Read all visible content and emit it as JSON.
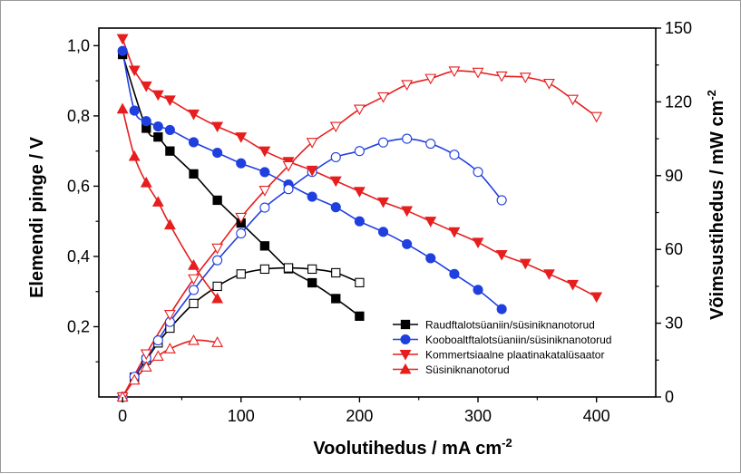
{
  "chart_data": {
    "type": "line",
    "xlabel": "Voolutihedus / mA cm",
    "xlabel_sup": "-2",
    "ylabel_left": "Elemendi pinge / V",
    "ylabel_right": "Võimsustihedus / mW cm",
    "ylabel_right_sup": "-2",
    "xlim": [
      -20,
      450
    ],
    "ylim_left": [
      0,
      1.05
    ],
    "ylim_right": [
      0,
      150
    ],
    "x_ticks": [
      0,
      100,
      200,
      300,
      400
    ],
    "y_left_ticks": [
      0.2,
      0.4,
      0.6,
      0.8,
      1.0
    ],
    "y_left_tick_labels": [
      "0,2",
      "0,4",
      "0,6",
      "0,8",
      "1,0"
    ],
    "y_right_ticks": [
      0,
      30,
      60,
      90,
      120,
      150
    ],
    "legend_position": "lower-right",
    "series": [
      {
        "name": "Raudftalotsüaniin/süsiniknanotorud",
        "color": "#000000",
        "marker": "square",
        "voltage": {
          "x": [
            0,
            20,
            30,
            40,
            60,
            80,
            100,
            120,
            140,
            160,
            180,
            200
          ],
          "y": [
            0.975,
            0.765,
            0.74,
            0.7,
            0.635,
            0.56,
            0.495,
            0.43,
            0.365,
            0.325,
            0.28,
            0.23
          ]
        },
        "power": {
          "x": [
            0,
            10,
            20,
            30,
            40,
            60,
            80,
            100,
            120,
            140,
            160,
            180,
            200
          ],
          "y": [
            0,
            8,
            15,
            22,
            28,
            38,
            45,
            50,
            52,
            52.5,
            52,
            50.5,
            46.5
          ]
        }
      },
      {
        "name": "Kooboaltftalotsüaniin/süsiniknanotorud",
        "color": "#1f3fdf",
        "marker": "circle",
        "voltage": {
          "x": [
            0,
            10,
            20,
            30,
            40,
            60,
            80,
            100,
            120,
            140,
            160,
            180,
            200,
            220,
            240,
            260,
            280,
            300,
            320
          ],
          "y": [
            0.985,
            0.815,
            0.785,
            0.77,
            0.76,
            0.725,
            0.695,
            0.665,
            0.64,
            0.605,
            0.57,
            0.54,
            0.5,
            0.47,
            0.435,
            0.395,
            0.35,
            0.305,
            0.25
          ]
        },
        "power": {
          "x": [
            0,
            10,
            20,
            30,
            40,
            60,
            80,
            100,
            120,
            140,
            160,
            180,
            200,
            220,
            240,
            260,
            280,
            300,
            320
          ],
          "y": [
            0,
            8.2,
            15.7,
            23,
            30.5,
            43.5,
            55.6,
            66.5,
            77,
            84.5,
            91.5,
            97.5,
            100,
            103.5,
            105,
            103,
            98.5,
            91.5,
            80
          ]
        }
      },
      {
        "name": "Kommertsiaalne plaatinakatalüsaator",
        "color": "#e61e1e",
        "marker": "triangle-down",
        "voltage": {
          "x": [
            0,
            10,
            20,
            30,
            40,
            60,
            80,
            100,
            120,
            140,
            160,
            180,
            200,
            220,
            240,
            260,
            280,
            300,
            320,
            340,
            360,
            380,
            400
          ],
          "y": [
            1.02,
            0.93,
            0.885,
            0.86,
            0.845,
            0.805,
            0.77,
            0.74,
            0.7,
            0.67,
            0.645,
            0.615,
            0.585,
            0.555,
            0.53,
            0.5,
            0.47,
            0.44,
            0.405,
            0.38,
            0.35,
            0.32,
            0.285
          ]
        },
        "power": {
          "x": [
            0,
            20,
            40,
            60,
            80,
            100,
            120,
            140,
            160,
            180,
            200,
            220,
            240,
            260,
            280,
            300,
            320,
            340,
            360,
            380,
            400
          ],
          "y": [
            0,
            17.5,
            33.5,
            48,
            60.5,
            73,
            84,
            94,
            103.5,
            110,
            117,
            122,
            127,
            129.5,
            132.5,
            132,
            130.5,
            130,
            127.5,
            121,
            114
          ]
        }
      },
      {
        "name": "Süsiniknanotorud",
        "color": "#e61e1e",
        "marker": "triangle-up",
        "voltage": {
          "x": [
            0,
            10,
            20,
            30,
            40,
            60,
            80
          ],
          "y": [
            0.82,
            0.685,
            0.61,
            0.555,
            0.49,
            0.375,
            0.28
          ]
        },
        "power": {
          "x": [
            0,
            10,
            20,
            30,
            40,
            60,
            80
          ],
          "y": [
            0,
            6.9,
            12.2,
            16.6,
            19.6,
            23,
            22.2
          ]
        }
      }
    ]
  }
}
